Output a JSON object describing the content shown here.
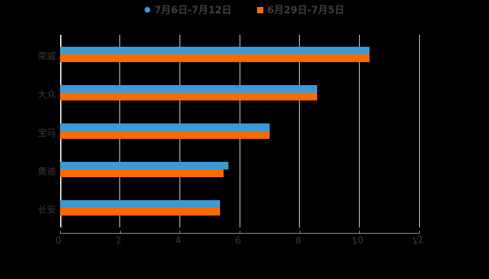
{
  "chart_data": {
    "type": "bar",
    "orientation": "horizontal",
    "title": "",
    "xlabel": "",
    "ylabel": "",
    "categories": [
      "荣威",
      "大众",
      "宝马",
      "奥迪",
      "长安"
    ],
    "series": [
      {
        "name": "7月6日-7月12日",
        "color": "#3a9ad6",
        "marker": "circle",
        "values": [
          10.35,
          8.6,
          7.0,
          5.63,
          5.35
        ]
      },
      {
        "name": "6月29日-7月5日",
        "color": "#ff6a00",
        "marker": "square",
        "values": [
          10.35,
          8.6,
          7.0,
          5.46,
          5.35
        ]
      }
    ],
    "xlim": [
      0,
      12
    ],
    "xticks": [
      "0",
      "2",
      "4",
      "6",
      "8",
      "10",
      "12"
    ],
    "grid": true,
    "legend_position": "top"
  },
  "legend": {
    "items": [
      {
        "label": "7月6日-7月12日",
        "color": "#3a9ad6"
      },
      {
        "label": "6月29日-7月5日",
        "color": "#ff6a00"
      }
    ]
  }
}
